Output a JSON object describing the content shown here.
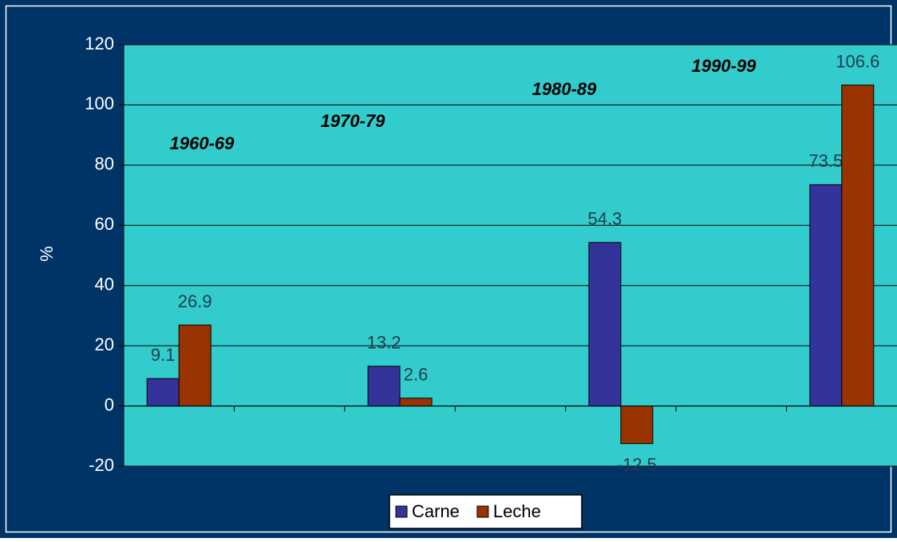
{
  "chart_data": {
    "type": "bar",
    "y_label": "%",
    "categories": [
      "1960-69",
      null,
      "1970-79",
      null,
      "1980-89",
      null,
      "1990-99"
    ],
    "series": [
      {
        "name": "Carne",
        "color": "#333399",
        "values": [
          9.1,
          null,
          13.2,
          null,
          54.3,
          null,
          73.5
        ]
      },
      {
        "name": "Leche",
        "color": "#993300",
        "values": [
          26.9,
          null,
          2.6,
          null,
          -12.5,
          null,
          106.6
        ]
      }
    ],
    "ylim": [
      -20,
      120
    ],
    "yticks": [
      -20,
      0,
      20,
      40,
      60,
      80,
      100,
      120
    ],
    "grid": true,
    "plot_color": "#33CCCC",
    "legend": "bottom"
  }
}
